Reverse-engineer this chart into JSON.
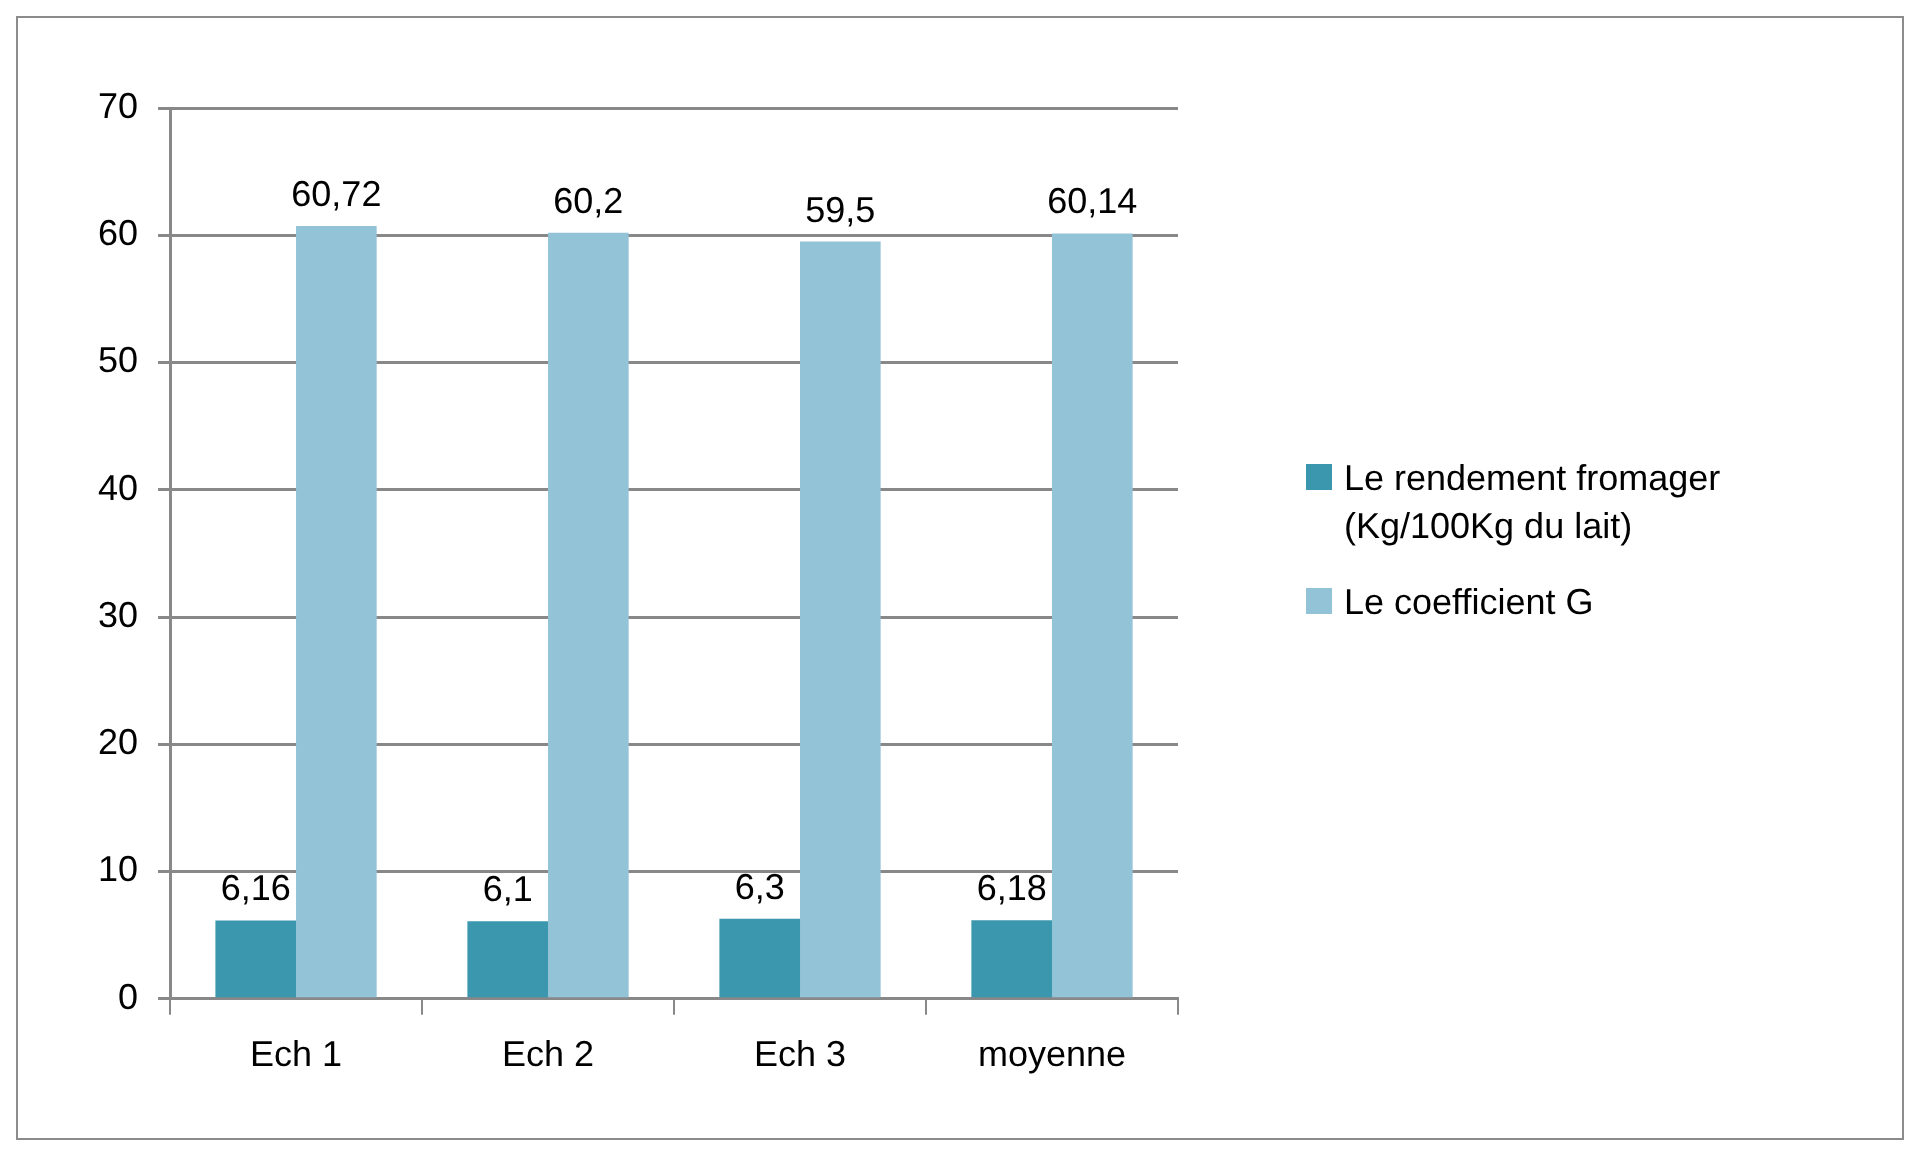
{
  "chart_data": {
    "type": "bar",
    "categories": [
      "Ech 1",
      "Ech 2",
      "Ech 3",
      "moyenne"
    ],
    "series": [
      {
        "name": "Le rendement fromager (Kg/100Kg du lait)",
        "color": "#3a97ad",
        "values": [
          6.16,
          6.1,
          6.3,
          6.18
        ],
        "value_labels": [
          "6,16",
          "6,1",
          "6,3",
          "6,18"
        ]
      },
      {
        "name": "Le coefficient G",
        "color": "#92c3d6",
        "values": [
          60.72,
          60.2,
          59.5,
          60.14
        ],
        "value_labels": [
          "60,72",
          "60,2",
          "59,5",
          "60,14"
        ]
      }
    ],
    "ylim": [
      0,
      70
    ],
    "yticks": [
      0,
      10,
      20,
      30,
      40,
      50,
      60,
      70
    ],
    "grid": "y",
    "legend": "right"
  }
}
